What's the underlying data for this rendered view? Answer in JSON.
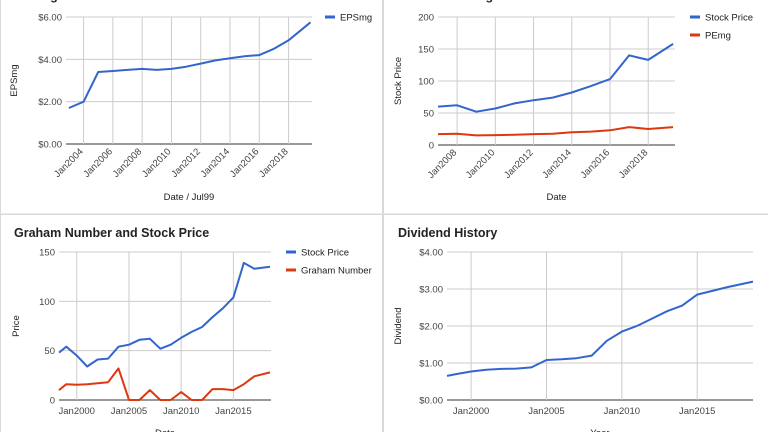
{
  "colors": {
    "blue": "#3366cc",
    "red": "#dc3912",
    "grid": "#cccccc",
    "border": "#d9d9d9"
  },
  "chart_data": [
    {
      "type": "line",
      "title": "EPSmg",
      "xlabel": "Date / Jul99",
      "ylabel": "EPSmg",
      "xlim": [
        2002.8,
        2019.6
      ],
      "ylim": [
        0,
        6
      ],
      "yticks": [
        {
          "v": 0,
          "label": "$0.00"
        },
        {
          "v": 2,
          "label": "$2.00"
        },
        {
          "v": 4,
          "label": "$4.00"
        },
        {
          "v": 6,
          "label": "$6.00"
        }
      ],
      "xticks": [
        {
          "v": 2004,
          "label": "Jan2004"
        },
        {
          "v": 2006,
          "label": "Jan2006"
        },
        {
          "v": 2008,
          "label": "Jan2008"
        },
        {
          "v": 2010,
          "label": "Jan2010"
        },
        {
          "v": 2012,
          "label": "Jan2012"
        },
        {
          "v": 2014,
          "label": "Jan2014"
        },
        {
          "v": 2016,
          "label": "Jan2016"
        },
        {
          "v": 2018,
          "label": "Jan2018"
        }
      ],
      "xtick_rotate": true,
      "legend": "top-right",
      "series": [
        {
          "name": "EPSmg",
          "color": "#3366cc",
          "x": [
            2003.0,
            2004.0,
            2005.0,
            2006.0,
            2007.0,
            2008.0,
            2009.0,
            2010.0,
            2011.0,
            2012.0,
            2013.0,
            2014.0,
            2015.0,
            2016.0,
            2017.0,
            2018.0,
            2019.5
          ],
          "y": [
            1.7,
            2.0,
            3.4,
            3.45,
            3.5,
            3.55,
            3.5,
            3.55,
            3.65,
            3.8,
            3.95,
            4.05,
            4.15,
            4.2,
            4.5,
            4.9,
            5.75
          ]
        }
      ]
    },
    {
      "type": "line",
      "title": "Price and PEmg",
      "xlabel": "Date",
      "ylabel": "Stock Price",
      "xlim": [
        2007.0,
        2019.4
      ],
      "ylim": [
        0,
        200
      ],
      "yticks": [
        {
          "v": 0,
          "label": "0"
        },
        {
          "v": 50,
          "label": "50"
        },
        {
          "v": 100,
          "label": "100"
        },
        {
          "v": 150,
          "label": "150"
        },
        {
          "v": 200,
          "label": "200"
        }
      ],
      "xticks": [
        {
          "v": 2008,
          "label": "Jan2008"
        },
        {
          "v": 2010,
          "label": "Jan2010"
        },
        {
          "v": 2012,
          "label": "Jan2012"
        },
        {
          "v": 2014,
          "label": "Jan2014"
        },
        {
          "v": 2016,
          "label": "Jan2016"
        },
        {
          "v": 2018,
          "label": "Jan2018"
        }
      ],
      "xtick_rotate": true,
      "legend": "top-right",
      "series": [
        {
          "name": "Stock Price",
          "color": "#3366cc",
          "x": [
            2007.0,
            2008.0,
            2009.0,
            2010.0,
            2011.0,
            2012.0,
            2013.0,
            2014.0,
            2015.0,
            2016.0,
            2017.0,
            2018.0,
            2019.3
          ],
          "y": [
            60,
            62,
            52,
            57,
            65,
            70,
            74,
            82,
            92,
            103,
            140,
            133,
            158
          ]
        },
        {
          "name": "PEmg",
          "color": "#dc3912",
          "x": [
            2007.0,
            2008.0,
            2009.0,
            2010.0,
            2011.0,
            2012.0,
            2013.0,
            2014.0,
            2015.0,
            2016.0,
            2017.0,
            2018.0,
            2019.3
          ],
          "y": [
            17,
            17.5,
            15,
            15.5,
            16,
            17,
            17.5,
            20,
            21,
            23,
            28,
            25,
            28
          ]
        }
      ]
    },
    {
      "type": "line",
      "title": "Graham Number and Stock Price",
      "xlabel": "Date",
      "ylabel": "Price",
      "xlim": [
        1998.3,
        2018.6
      ],
      "ylim": [
        0,
        150
      ],
      "yticks": [
        {
          "v": 0,
          "label": "0"
        },
        {
          "v": 50,
          "label": "50"
        },
        {
          "v": 100,
          "label": "100"
        },
        {
          "v": 150,
          "label": "150"
        }
      ],
      "xticks": [
        {
          "v": 2000,
          "label": "Jan2000"
        },
        {
          "v": 2005,
          "label": "Jan2005"
        },
        {
          "v": 2010,
          "label": "Jan2010"
        },
        {
          "v": 2015,
          "label": "Jan2015"
        }
      ],
      "xtick_rotate": false,
      "legend": "top-right",
      "series": [
        {
          "name": "Stock Price",
          "color": "#3366cc",
          "x": [
            1998.3,
            1999.0,
            2000.0,
            2001.0,
            2002.0,
            2003.0,
            2004.0,
            2005.0,
            2006.0,
            2007.0,
            2008.0,
            2009.0,
            2010.0,
            2011.0,
            2012.0,
            2013.0,
            2014.0,
            2015.0,
            2016.0,
            2017.0,
            2018.5
          ],
          "y": [
            48,
            54,
            45,
            34,
            41,
            42,
            54,
            56,
            61,
            62,
            52,
            56,
            63,
            69,
            74,
            84,
            93,
            104,
            139,
            133,
            135
          ]
        },
        {
          "name": "Graham Number",
          "color": "#dc3912",
          "x": [
            1998.3,
            1999.0,
            2000.0,
            2001.0,
            2002.0,
            2003.0,
            2004.0,
            2005.0,
            2006.0,
            2007.0,
            2008.0,
            2009.0,
            2010.0,
            2011.0,
            2012.0,
            2013.0,
            2014.0,
            2015.0,
            2016.0,
            2017.0,
            2018.5
          ],
          "y": [
            10,
            16,
            15.5,
            16,
            17,
            18,
            32,
            0,
            0,
            10,
            0,
            0,
            8,
            0,
            0,
            11,
            11,
            10,
            16,
            24,
            28
          ]
        }
      ]
    },
    {
      "type": "line",
      "title": "Dividend History",
      "xlabel": "Year",
      "ylabel": "Dividend",
      "xlim": [
        1998.4,
        2018.7
      ],
      "ylim": [
        0,
        4
      ],
      "yticks": [
        {
          "v": 0,
          "label": "$0.00"
        },
        {
          "v": 1,
          "label": "$1.00"
        },
        {
          "v": 2,
          "label": "$2.00"
        },
        {
          "v": 3,
          "label": "$3.00"
        },
        {
          "v": 4,
          "label": "$4.00"
        }
      ],
      "xticks": [
        {
          "v": 2000,
          "label": "Jan2000"
        },
        {
          "v": 2005,
          "label": "Jan2005"
        },
        {
          "v": 2010,
          "label": "Jan2010"
        },
        {
          "v": 2015,
          "label": "Jan2015"
        }
      ],
      "xtick_rotate": false,
      "legend": "none",
      "series": [
        {
          "name": "",
          "color": "#3366cc",
          "x": [
            1998.4,
            1999.0,
            2000.0,
            2001.0,
            2002.0,
            2003.0,
            2004.0,
            2005.0,
            2006.0,
            2007.0,
            2008.0,
            2009.0,
            2010.0,
            2011.0,
            2012.0,
            2013.0,
            2014.0,
            2015.0,
            2016.0,
            2017.0,
            2018.7
          ],
          "y": [
            0.65,
            0.7,
            0.77,
            0.82,
            0.84,
            0.85,
            0.88,
            1.08,
            1.1,
            1.13,
            1.2,
            1.6,
            1.85,
            2.0,
            2.2,
            2.4,
            2.55,
            2.85,
            2.95,
            3.05,
            3.2
          ]
        }
      ]
    }
  ]
}
